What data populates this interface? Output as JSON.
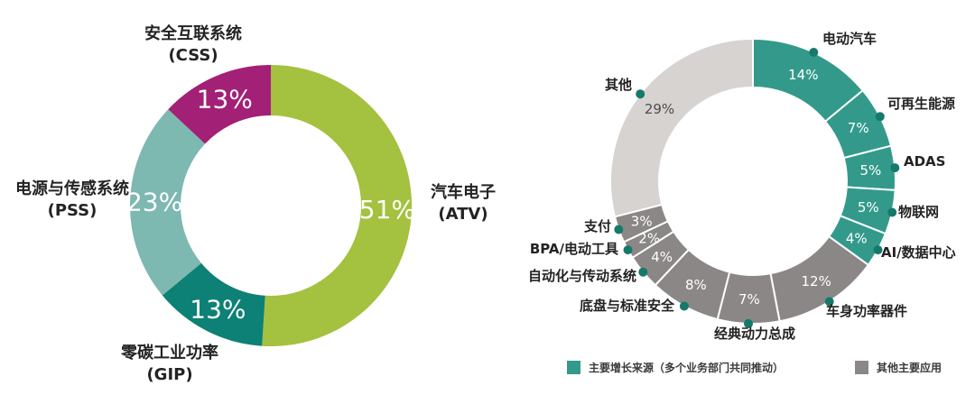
{
  "chart_data": [
    {
      "type": "donut",
      "name": "business-division-revenue-share",
      "legend_position": "none",
      "segments": [
        {
          "name": "汽车电子",
          "abbr": "(ATV)",
          "value": 51,
          "value_label": "51%",
          "color": "#a4c13f"
        },
        {
          "name": "零碳工业功率",
          "abbr": "(GIP)",
          "value": 13,
          "value_label": "13%",
          "color": "#0d8175"
        },
        {
          "name": "电源与传感系统",
          "abbr": "(PSS)",
          "value": 23,
          "value_label": "23%",
          "color": "#7db8b1"
        },
        {
          "name": "安全互联系统",
          "abbr": "(CSS)",
          "value": 13,
          "value_label": "13%",
          "color": "#a32077"
        }
      ]
    },
    {
      "type": "donut",
      "name": "application-revenue-share",
      "legend_position": "bottom",
      "segments": [
        {
          "label": "电动汽车",
          "value": 14,
          "value_label": "14%",
          "group": "growth"
        },
        {
          "label": "可再生能源",
          "value": 7,
          "value_label": "7%",
          "group": "growth"
        },
        {
          "label": "ADAS",
          "value": 5,
          "value_label": "5%",
          "group": "growth"
        },
        {
          "label": "物联网",
          "value": 5,
          "value_label": "5%",
          "group": "growth"
        },
        {
          "label": "AI/数据中心",
          "value": 4,
          "value_label": "4%",
          "group": "growth"
        },
        {
          "label": "车身功率器件",
          "value": 12,
          "value_label": "12%",
          "group": "other_major"
        },
        {
          "label": "经典动力总成",
          "value": 7,
          "value_label": "7%",
          "group": "other_major"
        },
        {
          "label": "底盘与标准安全",
          "value": 8,
          "value_label": "8%",
          "group": "other_major"
        },
        {
          "label": "自动化与传动系统",
          "value": 4,
          "value_label": "4%",
          "group": "other_major"
        },
        {
          "label": "BPA/电动工具",
          "value": 2,
          "value_label": "2%",
          "group": "other_major"
        },
        {
          "label": "支付",
          "value": 3,
          "value_label": "3%",
          "group": "other_major"
        },
        {
          "label": "其他",
          "value": 29,
          "value_label": "29%",
          "group": "other"
        }
      ],
      "group_colors": {
        "growth": "#339a8b",
        "other_major": "#8b8787",
        "other": "#d6d3d1"
      },
      "marker_color": "#15796b",
      "legend": [
        {
          "label": "主要增长来源（多个业务部门共同推动）",
          "color": "#339a8b"
        },
        {
          "label": "其他主要应用",
          "color": "#8b8787"
        }
      ]
    }
  ]
}
